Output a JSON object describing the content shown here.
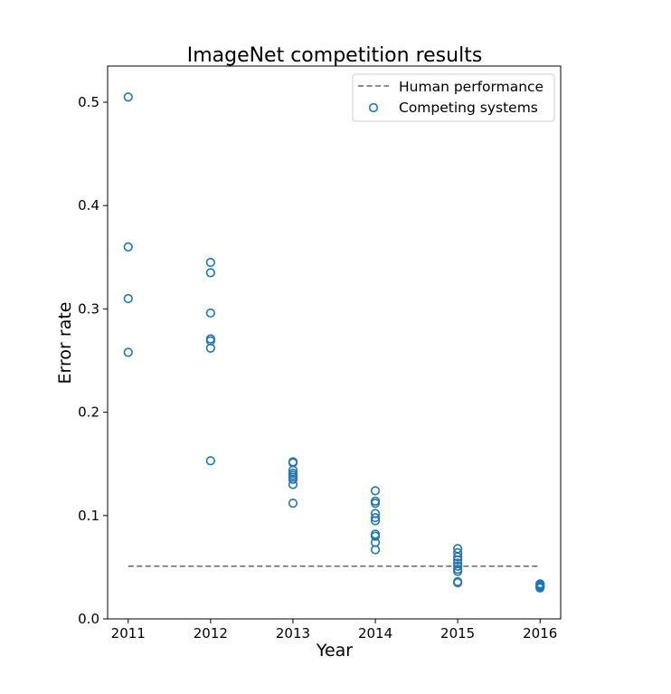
{
  "chart_data": {
    "type": "scatter",
    "title": "ImageNet competition results",
    "xlabel": "Year",
    "ylabel": "Error rate",
    "xlim": [
      2010.75,
      2016.25
    ],
    "ylim": [
      0.0,
      0.535
    ],
    "xticks": [
      2011,
      2012,
      2013,
      2014,
      2015,
      2016
    ],
    "xtick_labels": [
      "2011",
      "2012",
      "2013",
      "2014",
      "2015",
      "2016"
    ],
    "yticks": [
      0.0,
      0.1,
      0.2,
      0.3,
      0.4,
      0.5
    ],
    "ytick_labels": [
      "0.0",
      "0.1",
      "0.2",
      "0.3",
      "0.4",
      "0.5"
    ],
    "grid": false,
    "legend_position": "top-right",
    "series": [
      {
        "name": "Human performance",
        "kind": "line",
        "style": "dashed",
        "color": "#666666",
        "x": [
          2011,
          2016
        ],
        "y": [
          0.051,
          0.051
        ]
      },
      {
        "name": "Competing systems",
        "kind": "scatter",
        "marker": "open-circle",
        "color": "#1f77b4",
        "points": [
          [
            2011,
            0.505
          ],
          [
            2011,
            0.36
          ],
          [
            2011,
            0.31
          ],
          [
            2011,
            0.258
          ],
          [
            2012,
            0.345
          ],
          [
            2012,
            0.335
          ],
          [
            2012,
            0.296
          ],
          [
            2012,
            0.271
          ],
          [
            2012,
            0.269
          ],
          [
            2012,
            0.262
          ],
          [
            2012,
            0.153
          ],
          [
            2013,
            0.152
          ],
          [
            2013,
            0.151
          ],
          [
            2013,
            0.144
          ],
          [
            2013,
            0.141
          ],
          [
            2013,
            0.139
          ],
          [
            2013,
            0.137
          ],
          [
            2013,
            0.135
          ],
          [
            2013,
            0.13
          ],
          [
            2013,
            0.112
          ],
          [
            2014,
            0.124
          ],
          [
            2014,
            0.114
          ],
          [
            2014,
            0.112
          ],
          [
            2014,
            0.102
          ],
          [
            2014,
            0.098
          ],
          [
            2014,
            0.095
          ],
          [
            2014,
            0.082
          ],
          [
            2014,
            0.08
          ],
          [
            2014,
            0.074
          ],
          [
            2014,
            0.067
          ],
          [
            2015,
            0.068
          ],
          [
            2015,
            0.064
          ],
          [
            2015,
            0.06
          ],
          [
            2015,
            0.057
          ],
          [
            2015,
            0.054
          ],
          [
            2015,
            0.051
          ],
          [
            2015,
            0.048
          ],
          [
            2015,
            0.046
          ],
          [
            2015,
            0.036
          ],
          [
            2015,
            0.035
          ],
          [
            2016,
            0.034
          ],
          [
            2016,
            0.033
          ],
          [
            2016,
            0.032
          ],
          [
            2016,
            0.031
          ],
          [
            2016,
            0.03
          ]
        ]
      }
    ]
  }
}
